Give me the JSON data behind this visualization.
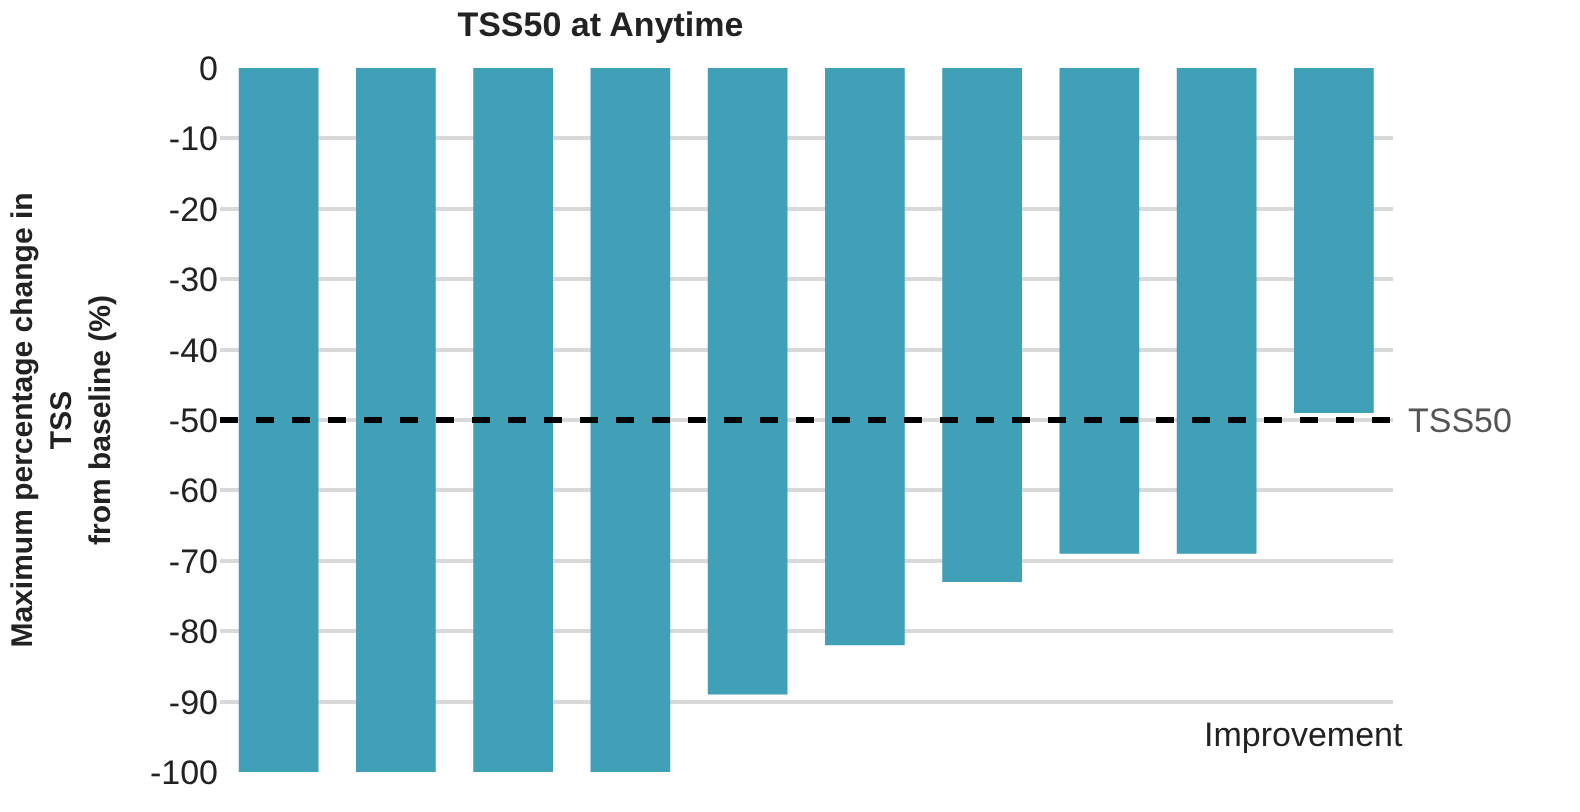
{
  "chart_data": {
    "type": "bar",
    "title": "TSS50 at Anytime",
    "ylabel": "Maximum percentage change in\nTSS\nfrom baseline (%)",
    "categories": [
      null,
      null,
      null,
      null,
      null,
      null,
      null,
      null,
      null,
      null
    ],
    "values": [
      -100,
      -100,
      -100,
      -100,
      -89,
      -82,
      -73,
      -69,
      -69,
      -49
    ],
    "color": "#3fa0b8",
    "ylim": [
      -100,
      0
    ],
    "yticks": [
      0,
      -10,
      -20,
      -30,
      -40,
      -50,
      -60,
      -70,
      -80,
      -90,
      -100
    ],
    "grid": "y",
    "ref_lines": [
      {
        "axis": "y",
        "value": -50,
        "label": "TSS50",
        "color": "#000000",
        "line_style": "dashed"
      }
    ],
    "annotations": [
      "Improvement"
    ]
  }
}
